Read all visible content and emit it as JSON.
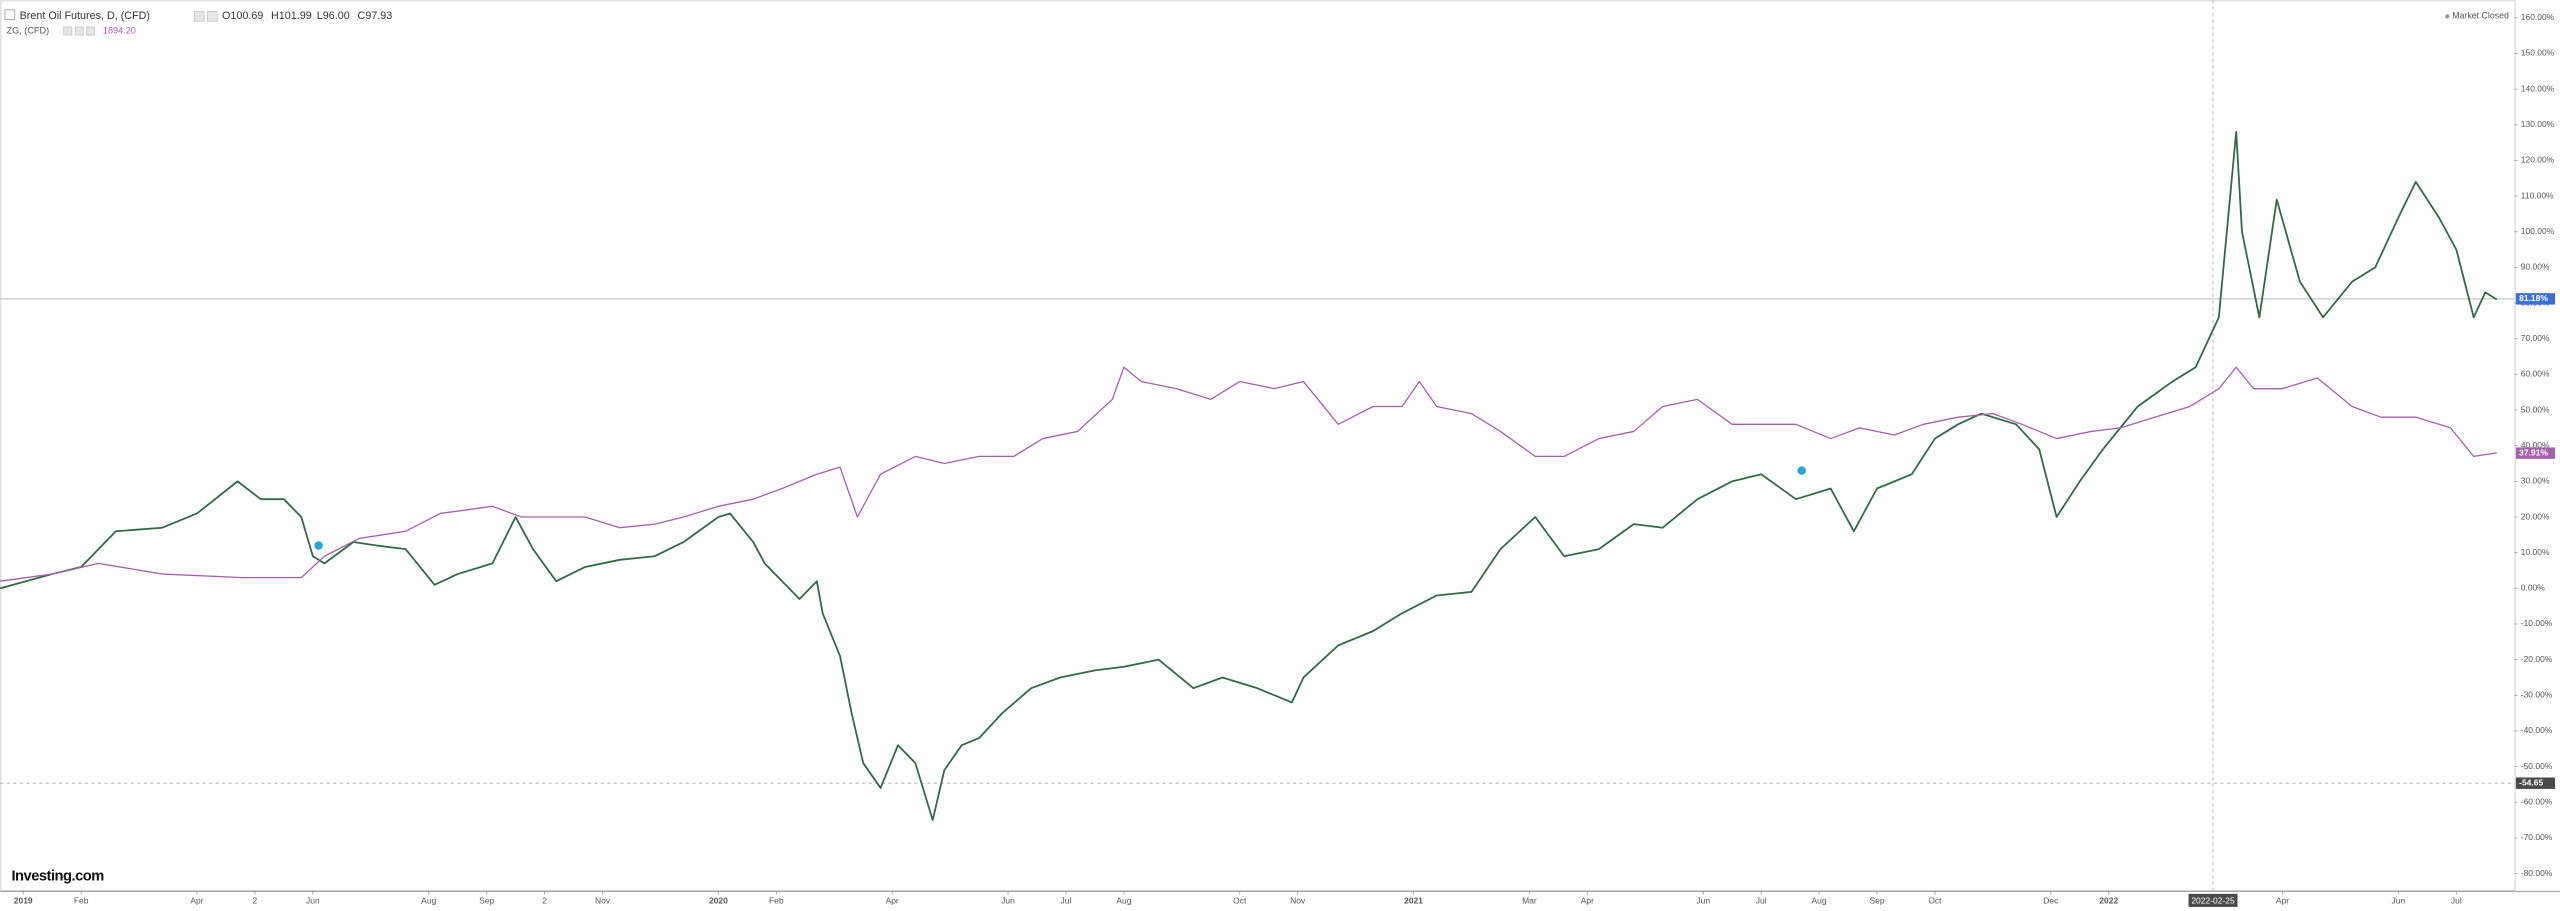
{
  "chart_data": {
    "type": "line",
    "title": "Brent Oil Futures, D, (CFD)",
    "ohlc": [
      "O100.69",
      "H101.99",
      "L96.00",
      "C97.93"
    ],
    "compare_name": "ZG, (CFD)",
    "compare_value": "1894.20",
    "status": "Market Closed",
    "logo": "Investing.com",
    "xlim": [
      -0.4,
      43
    ],
    "ylim": [
      -85,
      165
    ],
    "grid": false,
    "xticks": [
      {
        "value": 0,
        "label": "2019"
      },
      {
        "value": 1,
        "label": "Feb"
      },
      {
        "value": 3,
        "label": "Apr"
      },
      {
        "value": 4,
        "label": "2"
      },
      {
        "value": 5,
        "label": "Jun"
      },
      {
        "value": 7,
        "label": "Aug"
      },
      {
        "value": 8,
        "label": "Sep"
      },
      {
        "value": 9,
        "label": "2"
      },
      {
        "value": 10,
        "label": "Nov"
      },
      {
        "value": 12,
        "label": "2020"
      },
      {
        "value": 13,
        "label": "Feb"
      },
      {
        "value": 15,
        "label": "Apr"
      },
      {
        "value": 17,
        "label": "Jun"
      },
      {
        "value": 18,
        "label": "Jul"
      },
      {
        "value": 19,
        "label": "Aug"
      },
      {
        "value": 21,
        "label": "Oct"
      },
      {
        "value": 22,
        "label": "Nov"
      },
      {
        "value": 24,
        "label": "2021"
      },
      {
        "value": 26,
        "label": "Mar"
      },
      {
        "value": 27,
        "label": "Apr"
      },
      {
        "value": 29,
        "label": "Jun"
      },
      {
        "value": 30,
        "label": "Jul"
      },
      {
        "value": 31,
        "label": "Aug"
      },
      {
        "value": 32,
        "label": "Sep"
      },
      {
        "value": 33,
        "label": "Oct"
      },
      {
        "value": 35,
        "label": "Dec"
      },
      {
        "value": 36,
        "label": "2022"
      },
      {
        "value": 39,
        "label": "Apr"
      },
      {
        "value": 41,
        "label": "Jun"
      },
      {
        "value": 42,
        "label": "Jul"
      }
    ],
    "yticks": [
      {
        "value": 160,
        "label": "160.00%"
      },
      {
        "value": 150,
        "label": "150.00%"
      },
      {
        "value": 140,
        "label": "140.00%"
      },
      {
        "value": 130,
        "label": "130.00%"
      },
      {
        "value": 120,
        "label": "120.00%"
      },
      {
        "value": 110,
        "label": "110.00%"
      },
      {
        "value": 100,
        "label": "100.00%"
      },
      {
        "value": 90,
        "label": "90.00%"
      },
      {
        "value": 80,
        "label": "80.00%"
      },
      {
        "value": 70,
        "label": "70.00%"
      },
      {
        "value": 60,
        "label": "60.00%"
      },
      {
        "value": 50,
        "label": "50.00%"
      },
      {
        "value": 40,
        "label": "40.00%"
      },
      {
        "value": 30,
        "label": "30.00%"
      },
      {
        "value": 20,
        "label": "20.00%"
      },
      {
        "value": 10,
        "label": "10.00%"
      },
      {
        "value": 0,
        "label": "0.00%"
      },
      {
        "value": -10,
        "label": "-10.00%"
      },
      {
        "value": -20,
        "label": "-20.00%"
      },
      {
        "value": -30,
        "label": "-30.00%"
      },
      {
        "value": -40,
        "label": "-40.00%"
      },
      {
        "value": -50,
        "label": "-50.00%"
      },
      {
        "value": -60,
        "label": "-60.00%"
      },
      {
        "value": -70,
        "label": "-70.00%"
      },
      {
        "value": -80,
        "label": "-80.00%"
      }
    ],
    "series": [
      {
        "name": "Brent Oil Futures",
        "color": "#2f6b45",
        "x": [
          -0.4,
          0.5,
          1.0,
          1.6,
          2.4,
          3.0,
          3.7,
          4.1,
          4.5,
          4.8,
          5.0,
          5.2,
          5.7,
          6.1,
          6.6,
          7.1,
          7.5,
          8.1,
          8.5,
          8.8,
          9.2,
          9.7,
          10.3,
          10.9,
          11.4,
          12.0,
          12.2,
          12.6,
          12.8,
          13.1,
          13.4,
          13.7,
          13.8,
          14.1,
          14.3,
          14.5,
          14.8,
          15.1,
          15.4,
          15.7,
          15.9,
          16.2,
          16.5,
          16.9,
          17.4,
          17.9,
          18.5,
          19.0,
          19.6,
          20.2,
          20.7,
          21.3,
          21.9,
          22.1,
          22.7,
          23.3,
          23.8,
          24.4,
          25.0,
          25.5,
          26.1,
          26.6,
          27.2,
          27.8,
          28.3,
          28.9,
          29.5,
          30.0,
          30.6,
          31.2,
          31.6,
          32.0,
          32.6,
          33.0,
          33.4,
          33.8,
          34.4,
          34.8,
          35.1,
          35.5,
          35.9,
          36.5,
          37.1,
          37.5,
          37.9,
          38.2,
          38.3,
          38.6,
          38.9,
          39.3,
          39.7,
          40.2,
          40.6,
          41.0,
          41.3,
          41.7,
          42.0,
          42.3,
          42.5,
          42.7
        ],
        "values": [
          0,
          4,
          6,
          16,
          17,
          21,
          30,
          25,
          25,
          20,
          9,
          7,
          13,
          12,
          11,
          1,
          4,
          7,
          20,
          11,
          2,
          6,
          8,
          9,
          13,
          20,
          21,
          13,
          7,
          2,
          -3,
          2,
          -7,
          -19,
          -35,
          -49,
          -56,
          -44,
          -49,
          -65,
          -51,
          -44,
          -42,
          -35,
          -28,
          -25,
          -23,
          -22,
          -20,
          -28,
          -25,
          -28,
          -32,
          -25,
          -16,
          -12,
          -7,
          -2,
          -1,
          11,
          20,
          9,
          11,
          18,
          17,
          25,
          30,
          32,
          25,
          28,
          16,
          28,
          32,
          42,
          46,
          49,
          46,
          39,
          20,
          30,
          39,
          51,
          58,
          62,
          76,
          128,
          100,
          76,
          109,
          86,
          76,
          86,
          90,
          104,
          114,
          104,
          95,
          76,
          83,
          81
        ]
      },
      {
        "name": "ZG, (CFD)",
        "color": "#a461ab",
        "x": [
          -0.4,
          0.5,
          1.3,
          2.4,
          3.8,
          4.8,
          5.2,
          5.8,
          6.6,
          7.2,
          8.1,
          8.6,
          9.2,
          9.7,
          10.3,
          10.9,
          11.4,
          12.0,
          12.6,
          13.1,
          13.7,
          14.1,
          14.4,
          14.8,
          15.4,
          15.9,
          16.5,
          17.1,
          17.6,
          18.2,
          18.8,
          19.0,
          19.3,
          19.9,
          20.5,
          21.0,
          21.6,
          22.1,
          22.7,
          23.3,
          23.8,
          24.1,
          24.4,
          25.0,
          25.5,
          26.1,
          26.6,
          27.2,
          27.8,
          28.3,
          28.9,
          29.5,
          30.0,
          30.6,
          31.2,
          31.7,
          32.3,
          32.8,
          33.4,
          34.0,
          34.5,
          35.1,
          35.7,
          36.2,
          36.8,
          37.4,
          37.9,
          38.2,
          38.5,
          39.0,
          39.6,
          40.2,
          40.7,
          41.3,
          41.9,
          42.3,
          42.7
        ],
        "values": [
          2,
          4,
          7,
          4,
          3,
          3,
          9,
          14,
          16,
          21,
          23,
          20,
          20,
          20,
          17,
          18,
          20,
          23,
          25,
          28,
          32,
          34,
          20,
          32,
          37,
          35,
          37,
          37,
          42,
          44,
          53,
          62,
          58,
          56,
          53,
          58,
          56,
          58,
          46,
          51,
          51,
          58,
          51,
          49,
          44,
          37,
          37,
          42,
          44,
          51,
          53,
          46,
          46,
          46,
          42,
          45,
          43,
          46,
          48,
          49,
          46,
          42,
          44,
          45,
          48,
          51,
          56,
          62,
          56,
          56,
          59,
          51,
          48,
          48,
          45,
          37,
          38
        ]
      }
    ],
    "price_line": {
      "value": 81.18,
      "label": "81.18%"
    },
    "compare_line": {
      "value": 37.91,
      "label": "37.91%"
    },
    "crosshair": {
      "x": {
        "value": 37.8,
        "label": "2022-02-25"
      },
      "y": {
        "value": -54.65,
        "label": "-54.65"
      }
    },
    "events": [
      {
        "x": 5.1,
        "y": 12
      },
      {
        "x": 30.7,
        "y": 33
      }
    ]
  }
}
